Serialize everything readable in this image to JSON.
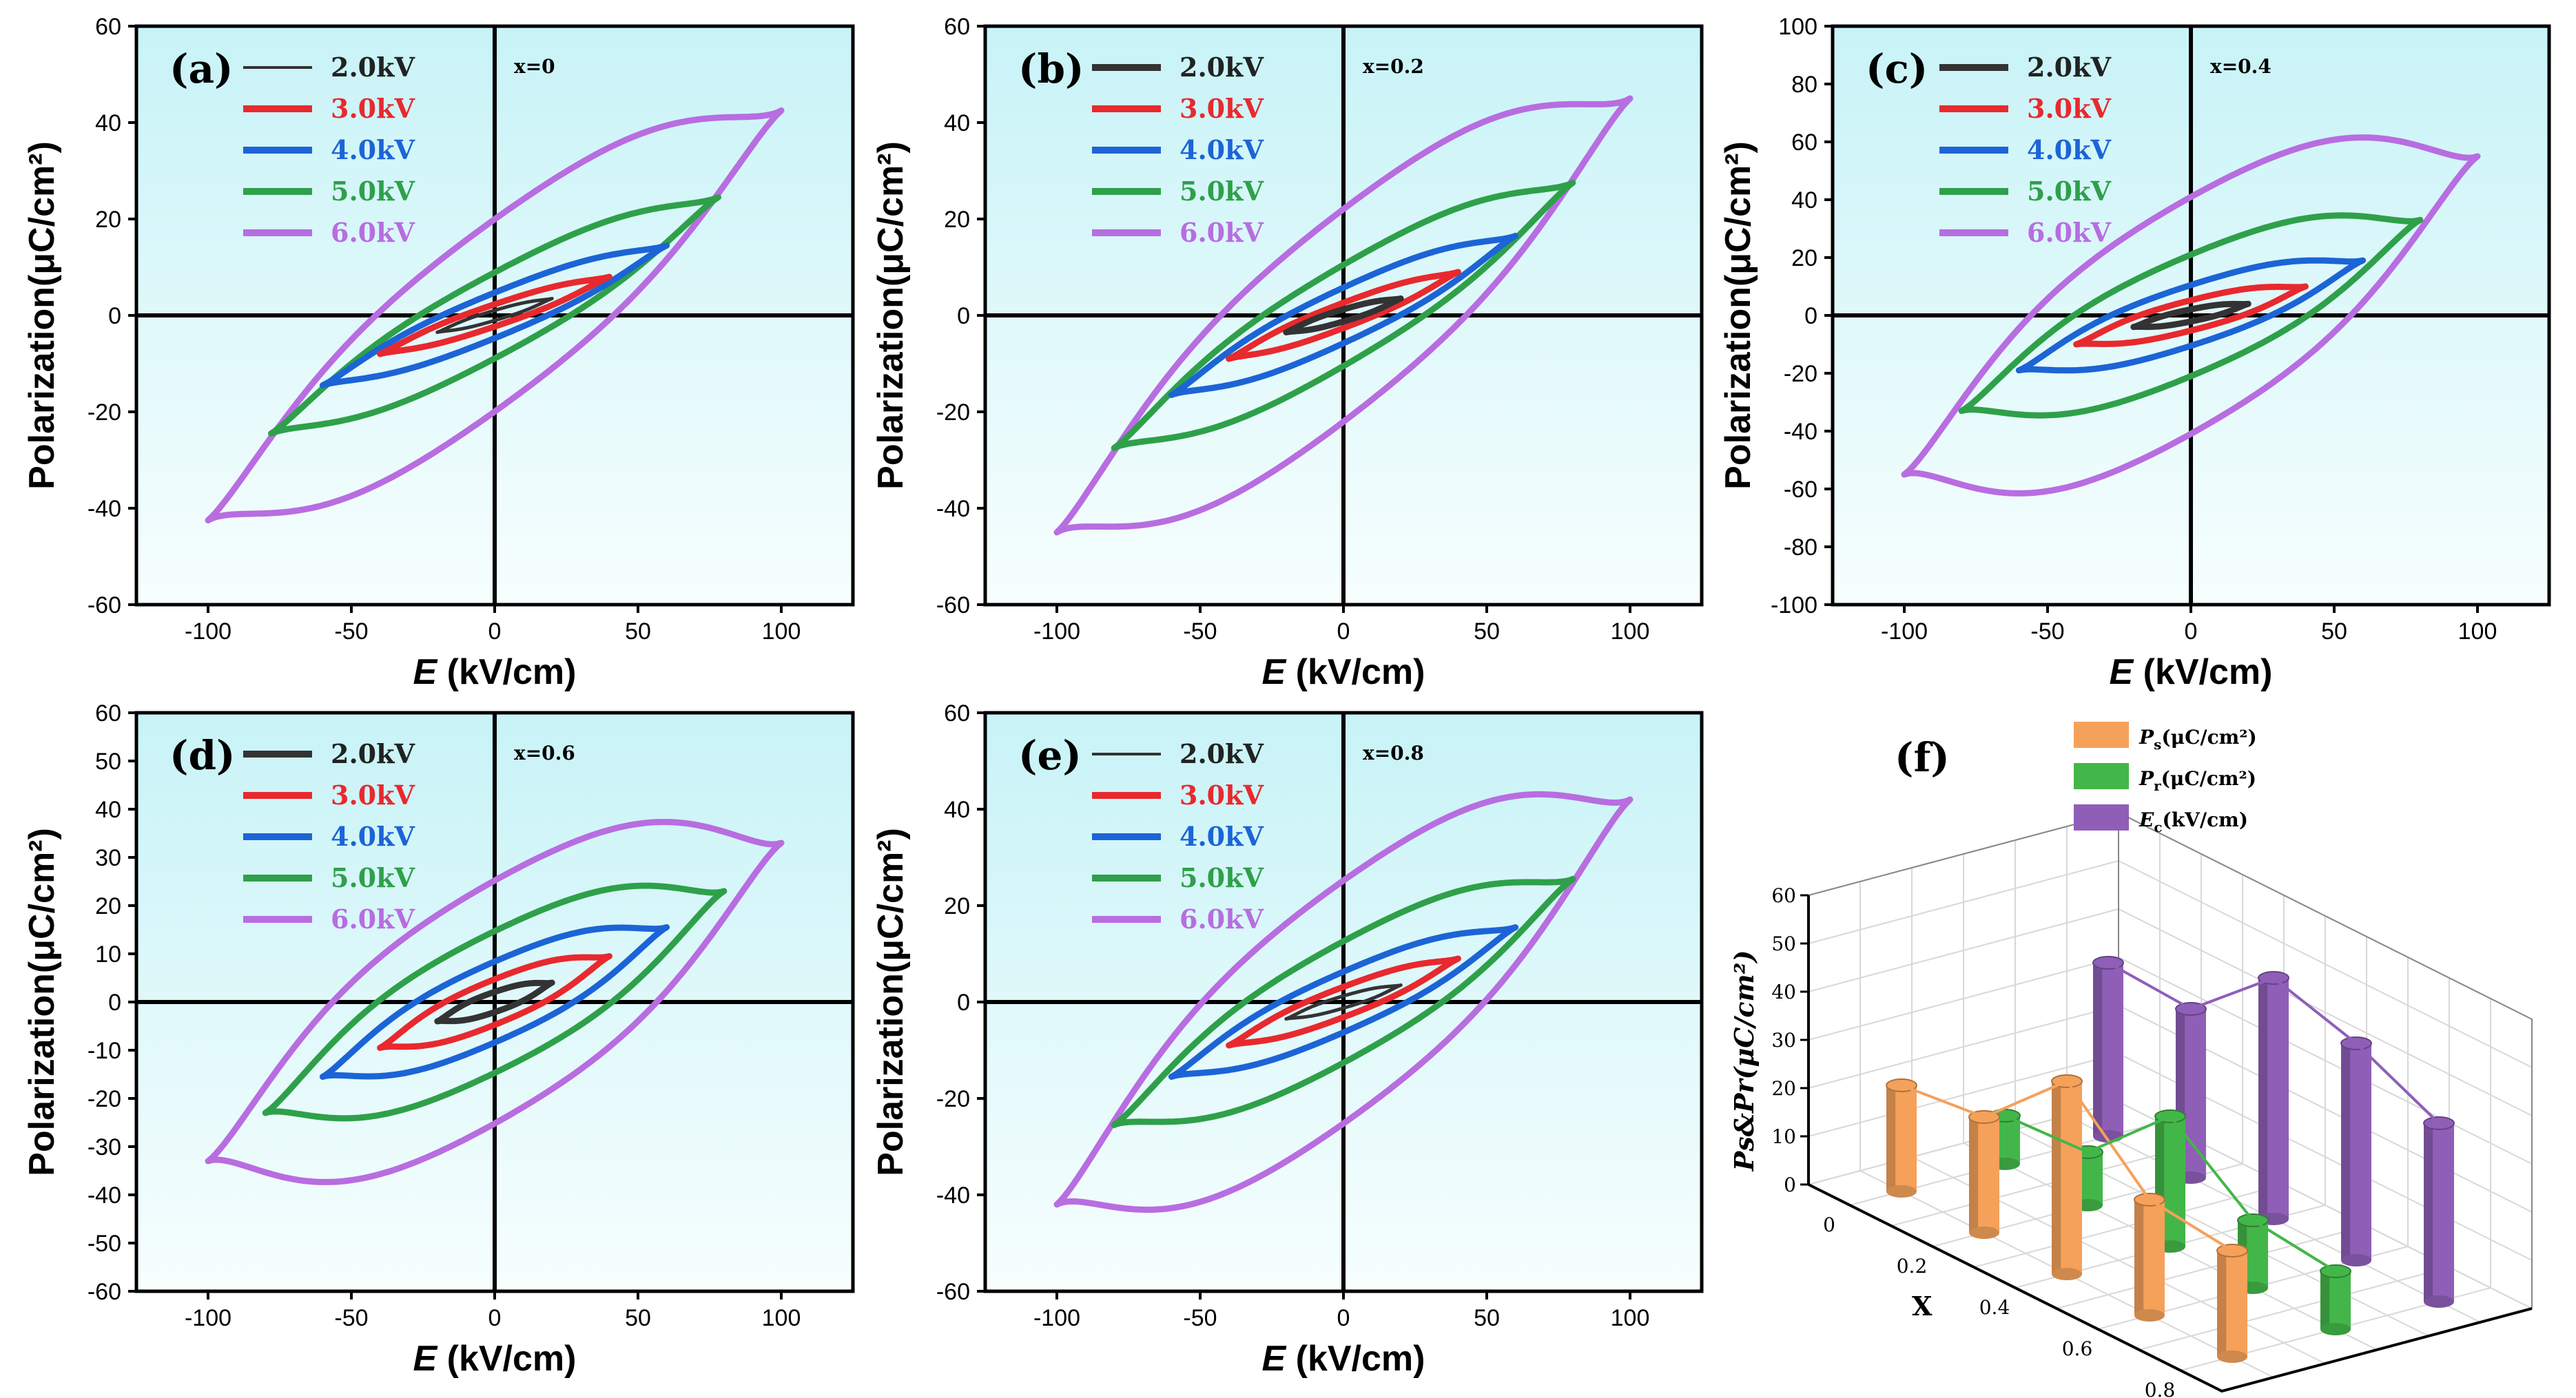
{
  "chart_data": [
    {
      "type": "line",
      "panel_label": "(a)",
      "annotation": "x=0",
      "xlabel_italic": "E",
      "xlabel_unit": " (kV/cm)",
      "ylabel": "Polarization(μC/cm²)",
      "xlim": [
        -125,
        125
      ],
      "ylim": [
        -60,
        60
      ],
      "xticks": [
        -100,
        -50,
        0,
        50,
        100
      ],
      "yticks": [
        -60,
        -40,
        -20,
        0,
        20,
        40,
        60
      ],
      "series": [
        {
          "name": "2.0kV",
          "color": "#333333",
          "emax": 20,
          "pmax": 3.5,
          "pr": 1.0
        },
        {
          "name": "3.0kV",
          "color": "#e8292e",
          "emax": 40,
          "pmax": 8,
          "pr": 2.2
        },
        {
          "name": "4.0kV",
          "color": "#1c64d6",
          "emax": 60,
          "pmax": 14.5,
          "pr": 4.5
        },
        {
          "name": "5.0kV",
          "color": "#2fa04a",
          "emax": 78,
          "pmax": 24.5,
          "pr": 8.5
        },
        {
          "name": "6.0kV",
          "color": "#b86de0",
          "emax": 100,
          "pmax": 42.5,
          "pr": 19
        }
      ]
    },
    {
      "type": "line",
      "panel_label": "(b)",
      "annotation": "x=0.2",
      "xlabel_italic": "E",
      "xlabel_unit": " (kV/cm)",
      "ylabel": "Polarization(μC/cm²)",
      "xlim": [
        -125,
        125
      ],
      "ylim": [
        -60,
        60
      ],
      "xticks": [
        -100,
        -50,
        0,
        50,
        100
      ],
      "yticks": [
        -60,
        -40,
        -20,
        0,
        20,
        40,
        60
      ],
      "series": [
        {
          "name": "2.0kV",
          "color": "#333333",
          "emax": 20,
          "pmax": 3.5,
          "pr": 1.2
        },
        {
          "name": "3.0kV",
          "color": "#e8292e",
          "emax": 40,
          "pmax": 9,
          "pr": 2.5
        },
        {
          "name": "4.0kV",
          "color": "#1c64d6",
          "emax": 60,
          "pmax": 16.5,
          "pr": 5.5
        },
        {
          "name": "5.0kV",
          "color": "#2fa04a",
          "emax": 80,
          "pmax": 27.5,
          "pr": 10
        },
        {
          "name": "6.0kV",
          "color": "#b86de0",
          "emax": 100,
          "pmax": 45,
          "pr": 21
        }
      ]
    },
    {
      "type": "line",
      "panel_label": "(c)",
      "annotation": "x=0.4",
      "xlabel_italic": "E",
      "xlabel_unit": " (kV/cm)",
      "ylabel": "Polarization(μC/cm²)",
      "xlim": [
        -125,
        125
      ],
      "ylim": [
        -100,
        100
      ],
      "xticks": [
        -100,
        -50,
        0,
        50,
        100
      ],
      "yticks": [
        -100,
        -80,
        -60,
        -40,
        -20,
        0,
        20,
        40,
        60,
        80,
        100
      ],
      "series": [
        {
          "name": "2.0kV",
          "color": "#333333",
          "emax": 20,
          "pmax": 4,
          "pr": 2
        },
        {
          "name": "3.0kV",
          "color": "#e8292e",
          "emax": 40,
          "pmax": 10,
          "pr": 5
        },
        {
          "name": "4.0kV",
          "color": "#1c64d6",
          "emax": 60,
          "pmax": 19,
          "pr": 10
        },
        {
          "name": "5.0kV",
          "color": "#2fa04a",
          "emax": 80,
          "pmax": 33,
          "pr": 20
        },
        {
          "name": "6.0kV",
          "color": "#b86de0",
          "emax": 100,
          "pmax": 55,
          "pr": 39
        }
      ]
    },
    {
      "type": "line",
      "panel_label": "(d)",
      "annotation": "x=0.6",
      "xlabel_italic": "E",
      "xlabel_unit": " (kV/cm)",
      "ylabel": "Polarization(μC/cm²)",
      "xlim": [
        -125,
        125
      ],
      "ylim": [
        -60,
        60
      ],
      "xticks": [
        -100,
        -50,
        0,
        50,
        100
      ],
      "yticks": [
        -60,
        -50,
        -40,
        -30,
        -20,
        -10,
        0,
        10,
        20,
        30,
        40,
        50,
        60
      ],
      "series": [
        {
          "name": "2.0kV",
          "color": "#333333",
          "emax": 20,
          "pmax": 4,
          "pr": 2
        },
        {
          "name": "3.0kV",
          "color": "#e8292e",
          "emax": 40,
          "pmax": 9.5,
          "pr": 4.5
        },
        {
          "name": "4.0kV",
          "color": "#1c64d6",
          "emax": 60,
          "pmax": 15.5,
          "pr": 8
        },
        {
          "name": "5.0kV",
          "color": "#2fa04a",
          "emax": 80,
          "pmax": 23,
          "pr": 14
        },
        {
          "name": "6.0kV",
          "color": "#b86de0",
          "emax": 100,
          "pmax": 33,
          "pr": 24
        }
      ]
    },
    {
      "type": "line",
      "panel_label": "(e)",
      "annotation": "x=0.8",
      "xlabel_italic": "E",
      "xlabel_unit": " (kV/cm)",
      "ylabel": "Polarization(μC/cm²)",
      "xlim": [
        -125,
        125
      ],
      "ylim": [
        -60,
        60
      ],
      "xticks": [
        -100,
        -50,
        0,
        50,
        100
      ],
      "yticks": [
        -60,
        -40,
        -20,
        0,
        20,
        40,
        60
      ],
      "series": [
        {
          "name": "2.0kV",
          "color": "#333333",
          "emax": 20,
          "pmax": 3.5,
          "pr": 1.2
        },
        {
          "name": "3.0kV",
          "color": "#e8292e",
          "emax": 40,
          "pmax": 9,
          "pr": 3
        },
        {
          "name": "4.0kV",
          "color": "#1c64d6",
          "emax": 60,
          "pmax": 15.5,
          "pr": 6
        },
        {
          "name": "5.0kV",
          "color": "#2fa04a",
          "emax": 80,
          "pmax": 25.5,
          "pr": 12
        },
        {
          "name": "6.0kV",
          "color": "#b86de0",
          "emax": 100,
          "pmax": 42,
          "pr": 24
        }
      ]
    },
    {
      "type": "bar",
      "panel_label": "(f)",
      "categories": [
        "0",
        "0.2",
        "0.4",
        "0.6",
        "0.8"
      ],
      "xlabel": "X",
      "zlabel_left": "Ps&Pr(μC/cm²)",
      "zlabel_right": "Ec(kV/cm)",
      "zlim": [
        0,
        60
      ],
      "zticks": [
        0,
        10,
        20,
        30,
        40,
        50,
        60
      ],
      "xticks": [
        "0",
        "0.2",
        "0.4",
        "0.6",
        "0.8"
      ],
      "series": [
        {
          "name": "Ps(μC/cm²)",
          "sym": "P",
          "sub": "s",
          "unit": "(μC/cm²)",
          "color": "#f5a15a",
          "values": [
            22,
            24,
            40,
            24,
            22
          ]
        },
        {
          "name": "Pr(μC/cm²)",
          "sym": "P",
          "sub": "r",
          "unit": "(μC/cm²)",
          "color": "#43b649",
          "values": [
            10,
            11,
            27,
            14,
            12
          ]
        },
        {
          "name": "Ec(kV/cm)",
          "sym": "E",
          "sub": "c",
          "unit": "(kV/cm)",
          "color": "#8f5fb8",
          "values": [
            36,
            35,
            50,
            45,
            37
          ]
        }
      ]
    }
  ]
}
